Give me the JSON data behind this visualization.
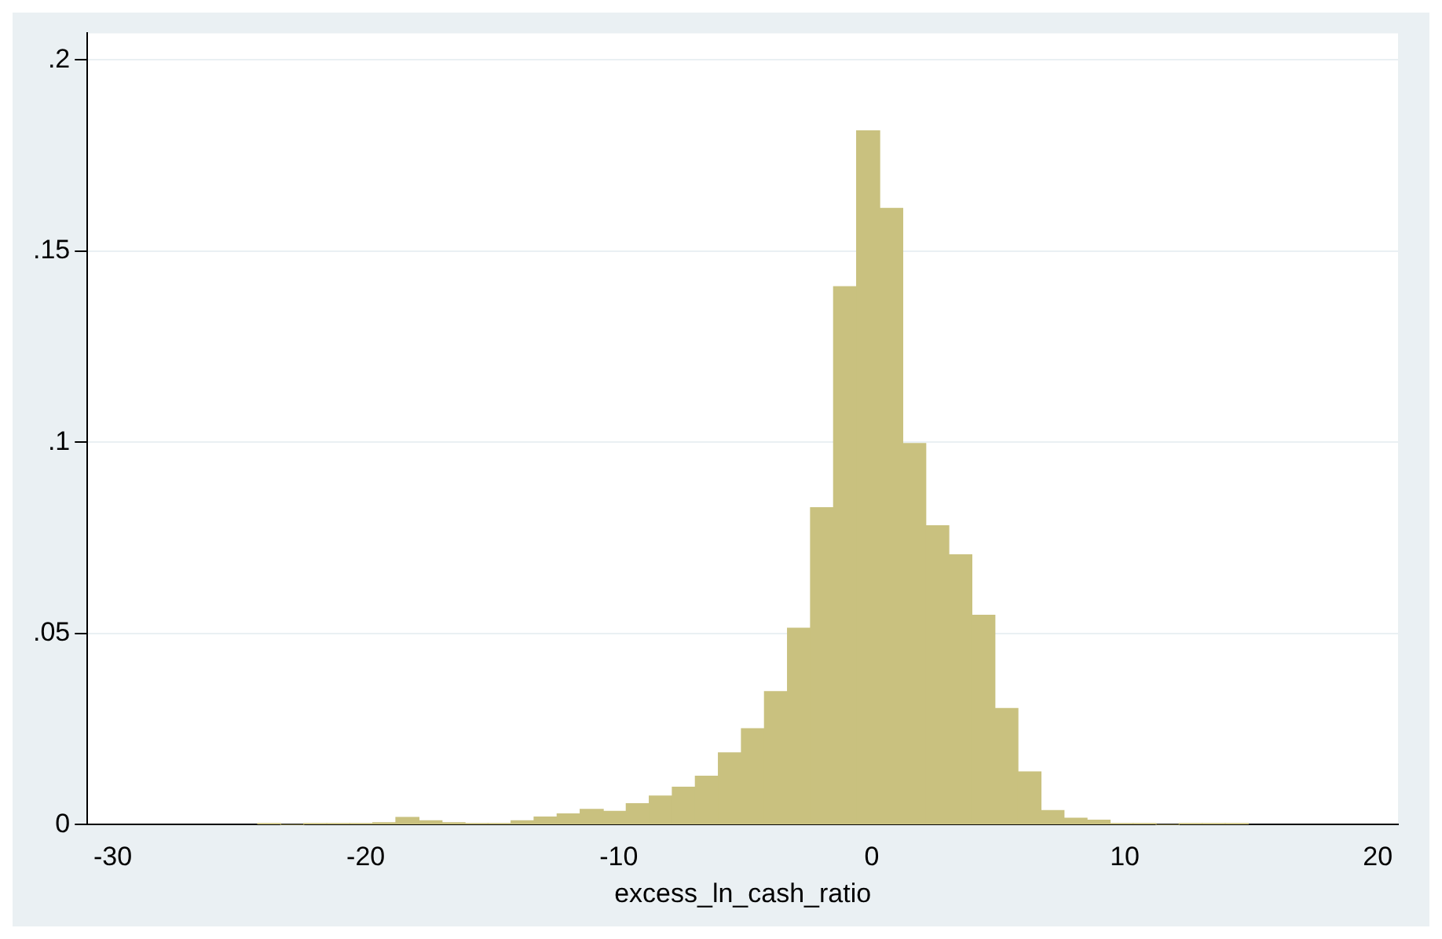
{
  "chart_data": {
    "type": "histogram",
    "xlabel": "excess_ln_cash_ratio",
    "bins": [
      -24.27,
      -23.3595,
      -22.449,
      -21.5385,
      -20.628,
      -19.7175,
      -18.807,
      -17.8965,
      -16.986,
      -16.0755,
      -15.165,
      -14.2545,
      -13.344,
      -12.4335,
      -11.523,
      -10.6125,
      -9.702,
      -8.7915,
      -7.881,
      -6.9705,
      -6.06,
      -5.1495,
      -4.239,
      -3.3285,
      -2.418,
      -1.5075,
      -0.597,
      0.3135,
      1.224,
      2.1345,
      3.045,
      3.9555,
      4.866,
      5.7765,
      6.687,
      7.5975,
      8.508,
      9.4185,
      10.329,
      11.2395,
      12.15,
      13.0605,
      13.971,
      14.8815
    ],
    "values": [
      0.0003,
      0,
      0.0003,
      0.0003,
      0.0003,
      0.0005,
      0.0019,
      0.001,
      0.0005,
      0.0003,
      0.0003,
      0.001,
      0.002,
      0.0028,
      0.004,
      0.0035,
      0.0055,
      0.0075,
      0.0098,
      0.0127,
      0.0188,
      0.0251,
      0.0348,
      0.0514,
      0.0829,
      0.1407,
      0.1815,
      0.1612,
      0.0997,
      0.0782,
      0.0706,
      0.0548,
      0.0304,
      0.0138,
      0.0037,
      0.0017,
      0.0012,
      0.0003,
      0.0003,
      0,
      0.0003,
      0.0003,
      0.0003
    ],
    "color": "#c9c17f",
    "xlim": [
      -31,
      20.8
    ],
    "xticks": [
      -30,
      -20,
      -10,
      0,
      10,
      20
    ],
    "ylim": [
      0,
      0.207
    ],
    "yticks": [
      0,
      {
        "value": 0.05,
        "label": ".05"
      },
      {
        "value": 0.1,
        "label": ".1"
      },
      {
        "value": 0.15,
        "label": ".15"
      },
      {
        "value": 0.2,
        "label": ".2"
      }
    ],
    "grid": "y"
  }
}
